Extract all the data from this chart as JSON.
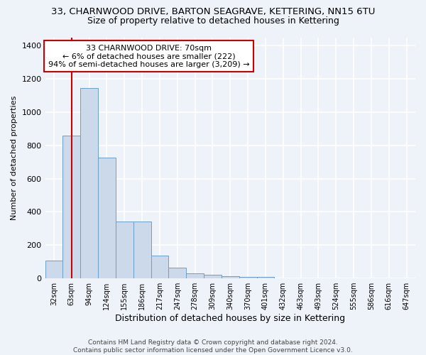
{
  "title": "33, CHARNWOOD DRIVE, BARTON SEAGRAVE, KETTERING, NN15 6TU",
  "subtitle": "Size of property relative to detached houses in Kettering",
  "xlabel": "Distribution of detached houses by size in Kettering",
  "ylabel": "Number of detached properties",
  "footer_line1": "Contains HM Land Registry data © Crown copyright and database right 2024.",
  "footer_line2": "Contains public sector information licensed under the Open Government Licence v3.0.",
  "bins": [
    "32sqm",
    "63sqm",
    "94sqm",
    "124sqm",
    "155sqm",
    "186sqm",
    "217sqm",
    "247sqm",
    "278sqm",
    "309sqm",
    "340sqm",
    "370sqm",
    "401sqm",
    "432sqm",
    "463sqm",
    "493sqm",
    "524sqm",
    "555sqm",
    "586sqm",
    "616sqm",
    "647sqm"
  ],
  "values": [
    105,
    860,
    1145,
    728,
    340,
    340,
    135,
    65,
    30,
    20,
    15,
    10,
    10,
    0,
    0,
    0,
    0,
    0,
    0,
    0,
    0
  ],
  "bar_color": "#ccd9ea",
  "bar_edge_color": "#6b9ec8",
  "vline_x": 1,
  "vline_color": "#cc0000",
  "annotation_text": "33 CHARNWOOD DRIVE: 70sqm\n← 6% of detached houses are smaller (222)\n94% of semi-detached houses are larger (3,209) →",
  "annotation_box_color": "#ffffff",
  "annotation_box_edge_color": "#cc0000",
  "ylim": [
    0,
    1450
  ],
  "yticks": [
    0,
    200,
    400,
    600,
    800,
    1000,
    1200,
    1400
  ],
  "background_color": "#eef2f9",
  "plot_background": "#eef2f9",
  "grid_color": "#ffffff",
  "title_fontsize": 9.5,
  "subtitle_fontsize": 9
}
